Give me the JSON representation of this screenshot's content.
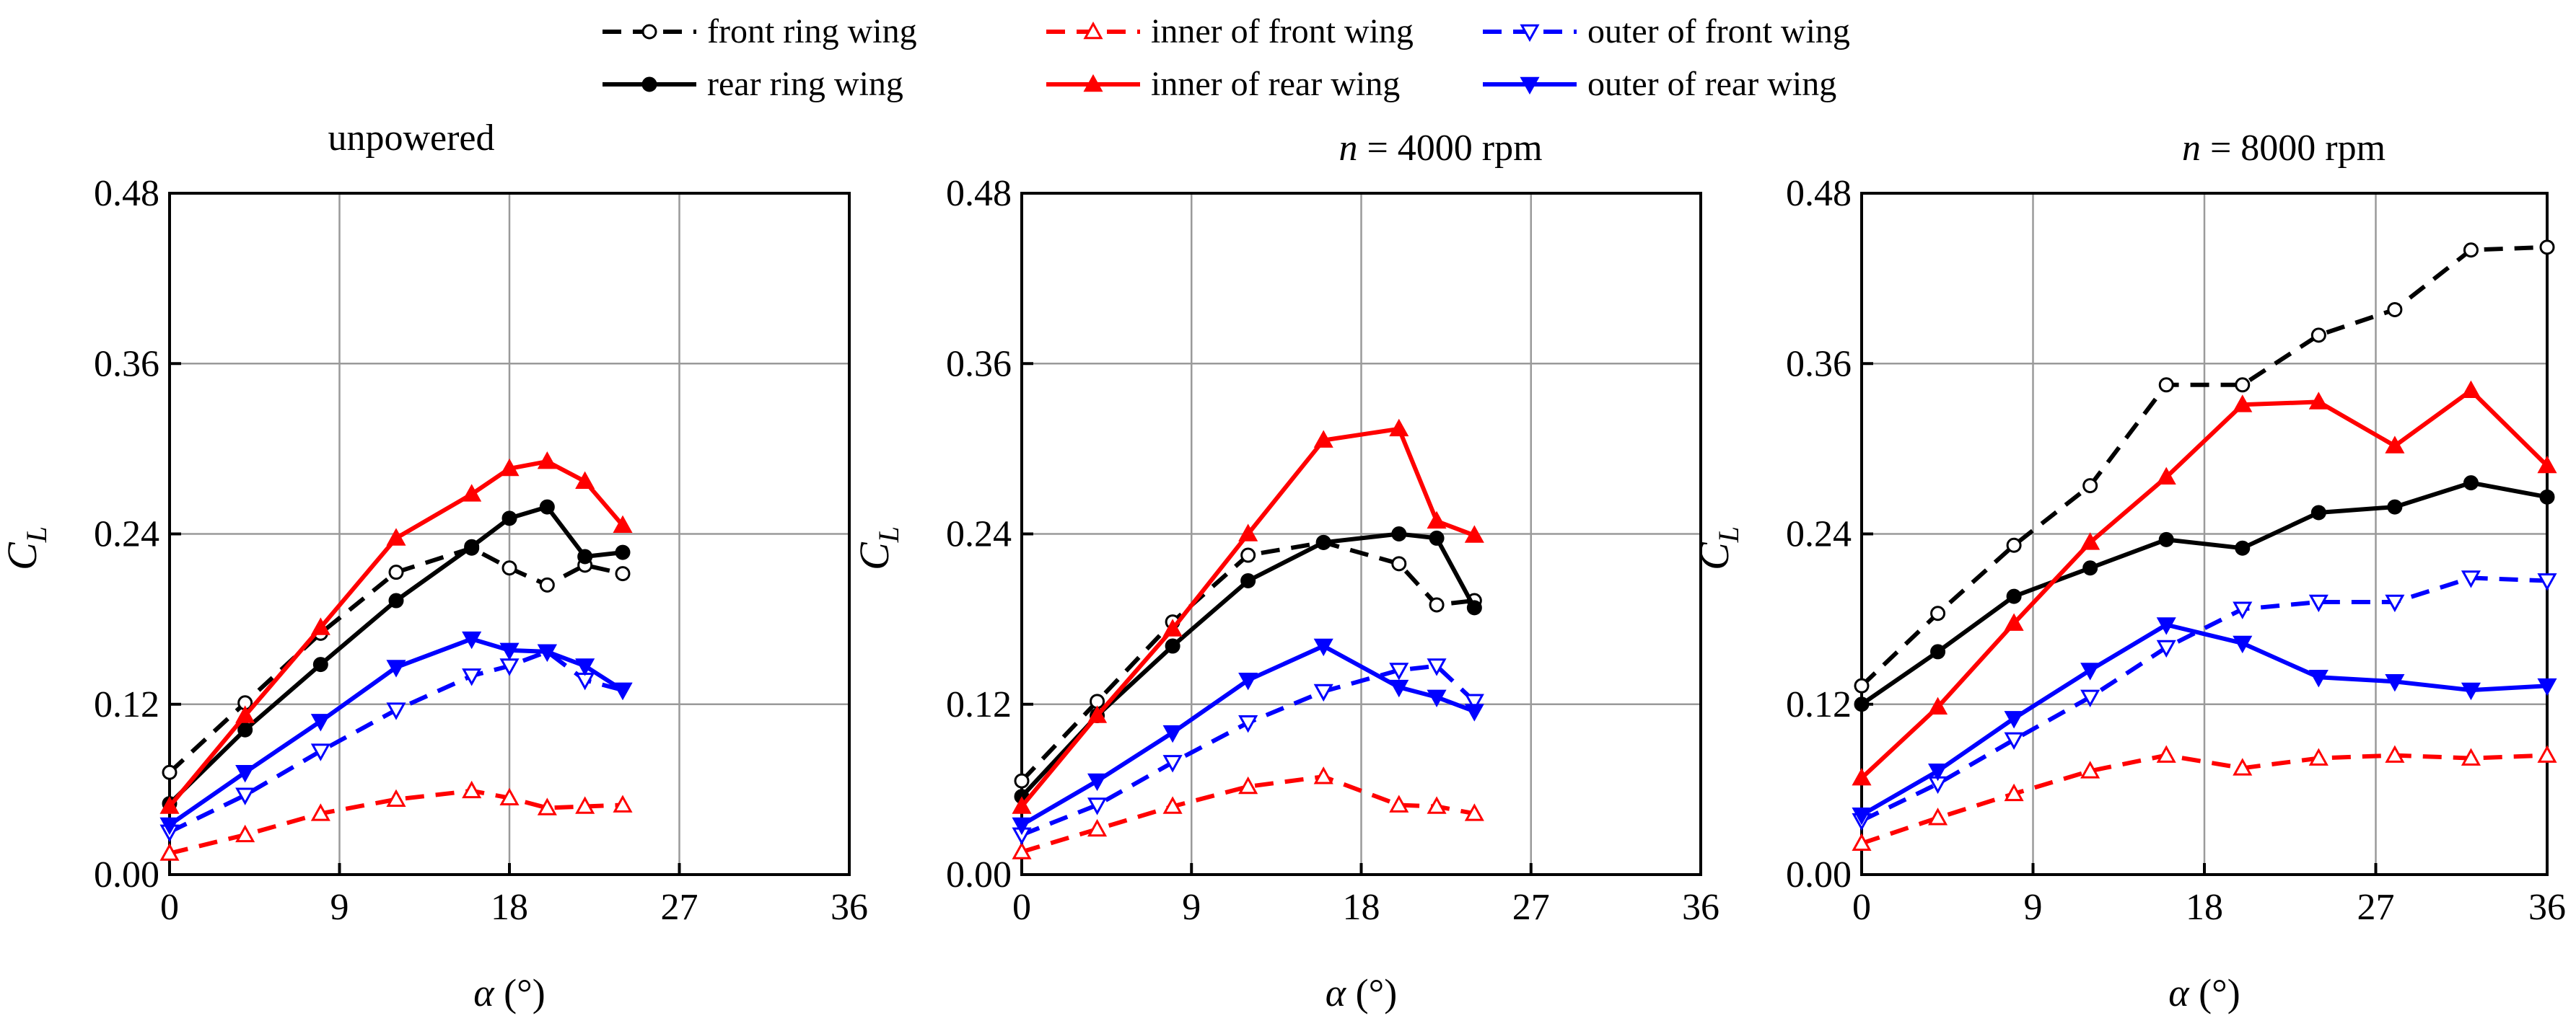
{
  "legend": {
    "entries": [
      {
        "key": "front",
        "label": "front ring wing",
        "color": "#000000",
        "dash": true,
        "marker": "circle",
        "filled": false
      },
      {
        "key": "inner_front",
        "label": "inner of front wing",
        "color": "#ff0000",
        "dash": true,
        "marker": "triangle-up",
        "filled": false
      },
      {
        "key": "outer_front",
        "label": "outer of front wing",
        "color": "#0000ff",
        "dash": true,
        "marker": "triangle-down",
        "filled": false
      },
      {
        "key": "rear",
        "label": "rear ring wing",
        "color": "#000000",
        "dash": false,
        "marker": "circle",
        "filled": true
      },
      {
        "key": "inner_rear",
        "label": "inner of  rear wing",
        "color": "#ff0000",
        "dash": false,
        "marker": "triangle-up",
        "filled": true
      },
      {
        "key": "outer_rear",
        "label": "outer of  rear  wing",
        "color": "#0000ff",
        "dash": false,
        "marker": "triangle-down",
        "filled": true
      }
    ]
  },
  "chart_data": [
    {
      "type": "line",
      "title": "unpowered",
      "title_prefix": "",
      "xlabel": "α (°)",
      "ylabel": "C",
      "ylabel_sub": "L",
      "xlim": [
        0,
        36
      ],
      "ylim": [
        0,
        0.48
      ],
      "xticks": [
        "0",
        "9",
        "18",
        "27",
        "36"
      ],
      "yticks": [
        "0.00",
        "0.12",
        "0.24",
        "0.36",
        "0.48"
      ],
      "grid": true,
      "series": [
        {
          "name": "front ring wing",
          "x": [
            0,
            4,
            8,
            12,
            16,
            18,
            20,
            22,
            24
          ],
          "y": [
            0.072,
            0.121,
            0.17,
            0.213,
            0.23,
            0.216,
            0.204,
            0.218,
            0.212
          ]
        },
        {
          "name": "inner of front wing",
          "x": [
            0,
            4,
            8,
            12,
            16,
            18,
            20,
            22,
            24
          ],
          "y": [
            0.015,
            0.028,
            0.043,
            0.053,
            0.059,
            0.054,
            0.047,
            0.048,
            0.049
          ]
        },
        {
          "name": "outer of front wing",
          "x": [
            0,
            4,
            8,
            12,
            16,
            18,
            20,
            22,
            24
          ],
          "y": [
            0.03,
            0.056,
            0.087,
            0.116,
            0.14,
            0.147,
            0.157,
            0.137,
            0.13
          ]
        },
        {
          "name": "rear ring wing",
          "x": [
            0,
            4,
            8,
            12,
            16,
            18,
            20,
            22,
            24
          ],
          "y": [
            0.05,
            0.102,
            0.148,
            0.193,
            0.231,
            0.251,
            0.259,
            0.224,
            0.227
          ]
        },
        {
          "name": "inner of  rear wing",
          "x": [
            0,
            4,
            8,
            12,
            16,
            18,
            20,
            22,
            24
          ],
          "y": [
            0.048,
            0.112,
            0.174,
            0.237,
            0.268,
            0.286,
            0.291,
            0.277,
            0.246
          ]
        },
        {
          "name": "outer of  rear  wing",
          "x": [
            0,
            4,
            8,
            12,
            16,
            18,
            20,
            22,
            24
          ],
          "y": [
            0.035,
            0.072,
            0.108,
            0.146,
            0.166,
            0.158,
            0.157,
            0.147,
            0.13
          ]
        }
      ]
    },
    {
      "type": "line",
      "title": " = 4000 rpm",
      "title_prefix": "n",
      "xlabel": "α (°)",
      "ylabel": "C",
      "ylabel_sub": "L",
      "xlim": [
        0,
        36
      ],
      "ylim": [
        0,
        0.48
      ],
      "xticks": [
        "0",
        "9",
        "18",
        "27",
        "36"
      ],
      "yticks": [
        "0.00",
        "0.12",
        "0.24",
        "0.36",
        "0.48"
      ],
      "grid": true,
      "series": [
        {
          "name": "front ring wing",
          "x": [
            0,
            4,
            8,
            12,
            16,
            20,
            22,
            24
          ],
          "y": [
            0.066,
            0.122,
            0.178,
            0.225,
            0.234,
            0.219,
            0.19,
            0.193
          ]
        },
        {
          "name": "inner of front wing",
          "x": [
            0,
            4,
            8,
            12,
            16,
            20,
            22,
            24
          ],
          "y": [
            0.016,
            0.032,
            0.048,
            0.062,
            0.069,
            0.049,
            0.048,
            0.043
          ]
        },
        {
          "name": "outer of front wing",
          "x": [
            0,
            4,
            8,
            12,
            16,
            20,
            22,
            24
          ],
          "y": [
            0.028,
            0.049,
            0.079,
            0.107,
            0.129,
            0.144,
            0.147,
            0.122
          ]
        },
        {
          "name": "rear ring wing",
          "x": [
            0,
            4,
            8,
            12,
            16,
            20,
            22,
            24
          ],
          "y": [
            0.055,
            0.112,
            0.161,
            0.207,
            0.234,
            0.24,
            0.237,
            0.188
          ]
        },
        {
          "name": "inner of  rear wing",
          "x": [
            0,
            4,
            8,
            12,
            16,
            20,
            22,
            24
          ],
          "y": [
            0.048,
            0.112,
            0.173,
            0.24,
            0.306,
            0.314,
            0.249,
            0.239
          ]
        },
        {
          "name": "outer of  rear  wing",
          "x": [
            0,
            4,
            8,
            12,
            16,
            20,
            22,
            24
          ],
          "y": [
            0.035,
            0.066,
            0.1,
            0.137,
            0.161,
            0.132,
            0.125,
            0.115
          ]
        }
      ]
    },
    {
      "type": "line",
      "title": " = 8000 rpm",
      "title_prefix": "n",
      "xlabel": "α (°)",
      "ylabel": "C",
      "ylabel_sub": "L",
      "xlim": [
        0,
        36
      ],
      "ylim": [
        0,
        0.48
      ],
      "xticks": [
        "0",
        "9",
        "18",
        "27",
        "36"
      ],
      "yticks": [
        "0.00",
        "0.12",
        "0.24",
        "0.36",
        "0.48"
      ],
      "grid": true,
      "series": [
        {
          "name": "front ring wing",
          "x": [
            0,
            4,
            8,
            12,
            16,
            20,
            24,
            28,
            32,
            36
          ],
          "y": [
            0.133,
            0.184,
            0.232,
            0.274,
            0.345,
            0.345,
            0.38,
            0.398,
            0.44,
            0.442
          ]
        },
        {
          "name": "inner of front wing",
          "x": [
            0,
            4,
            8,
            12,
            16,
            20,
            24,
            28,
            32,
            36
          ],
          "y": [
            0.022,
            0.04,
            0.057,
            0.073,
            0.084,
            0.075,
            0.082,
            0.084,
            0.082,
            0.084
          ]
        },
        {
          "name": "outer of front wing",
          "x": [
            0,
            4,
            8,
            12,
            16,
            20,
            24,
            28,
            32,
            36
          ],
          "y": [
            0.038,
            0.064,
            0.095,
            0.125,
            0.16,
            0.187,
            0.192,
            0.192,
            0.209,
            0.207
          ]
        },
        {
          "name": "rear ring wing",
          "x": [
            0,
            4,
            8,
            12,
            16,
            20,
            24,
            28,
            32,
            36
          ],
          "y": [
            0.12,
            0.157,
            0.196,
            0.216,
            0.236,
            0.23,
            0.255,
            0.259,
            0.276,
            0.266
          ]
        },
        {
          "name": "inner of  rear wing",
          "x": [
            0,
            4,
            8,
            12,
            16,
            20,
            24,
            28,
            32,
            36
          ],
          "y": [
            0.068,
            0.118,
            0.177,
            0.234,
            0.28,
            0.331,
            0.333,
            0.302,
            0.341,
            0.288
          ]
        },
        {
          "name": "outer of  rear  wing",
          "x": [
            0,
            4,
            8,
            12,
            16,
            20,
            24,
            28,
            32,
            36
          ],
          "y": [
            0.042,
            0.073,
            0.11,
            0.144,
            0.176,
            0.163,
            0.139,
            0.136,
            0.13,
            0.133
          ]
        }
      ]
    }
  ]
}
